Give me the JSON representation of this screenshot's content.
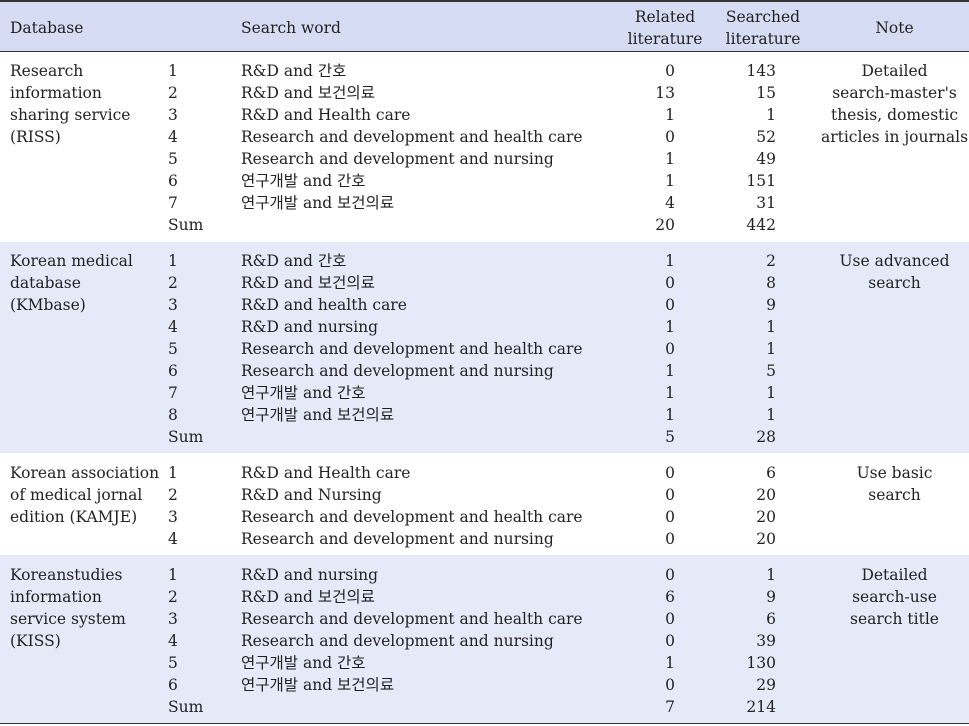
{
  "header": {
    "database": "Database",
    "search_word": "Search word",
    "related_l1": "Related",
    "related_l2": "literature",
    "searched_l1": "Searched",
    "searched_l2": "literature",
    "note": "Note"
  },
  "groups": [
    {
      "db": [
        "Research",
        "information",
        "sharing service",
        "(RISS)"
      ],
      "note": [
        "Detailed",
        "search-master's",
        "thesis, domestic",
        "articles in journals"
      ],
      "rows": [
        {
          "no": "1",
          "word": "R&D and 간호",
          "related": "0",
          "searched": "143"
        },
        {
          "no": "2",
          "word": "R&D and 보건의료",
          "related": "13",
          "searched": "15"
        },
        {
          "no": "3",
          "word": "R&D and Health care",
          "related": "1",
          "searched": "1"
        },
        {
          "no": "4",
          "word": "Research and development and health care",
          "related": "0",
          "searched": "52"
        },
        {
          "no": "5",
          "word": "Research and development and nursing",
          "related": "1",
          "searched": "49"
        },
        {
          "no": "6",
          "word": "연구개발 and 간호",
          "related": "1",
          "searched": "151"
        },
        {
          "no": "7",
          "word": "연구개발 and 보건의료",
          "related": "4",
          "searched": "31"
        },
        {
          "no": "Sum",
          "word": "",
          "related": "20",
          "searched": "442"
        }
      ]
    },
    {
      "db": [
        "Korean medical",
        "database",
        "(KMbase)"
      ],
      "note": [
        "Use advanced",
        "search"
      ],
      "rows": [
        {
          "no": "1",
          "word": "R&D and 간호",
          "related": "1",
          "searched": "2"
        },
        {
          "no": "2",
          "word": "R&D and 보건의료",
          "related": "0",
          "searched": "8"
        },
        {
          "no": "3",
          "word": "R&D and health care",
          "related": "0",
          "searched": "9"
        },
        {
          "no": "4",
          "word": "R&D and nursing",
          "related": "1",
          "searched": "1"
        },
        {
          "no": "5",
          "word": "Research and development and health care",
          "related": "0",
          "searched": "1"
        },
        {
          "no": "6",
          "word": "Research and development and nursing",
          "related": "1",
          "searched": "5"
        },
        {
          "no": "7",
          "word": "연구개발 and 간호",
          "related": "1",
          "searched": "1"
        },
        {
          "no": "8",
          "word": "연구개발 and 보건의료",
          "related": "1",
          "searched": "1"
        },
        {
          "no": "Sum",
          "word": "",
          "related": "5",
          "searched": "28"
        }
      ]
    },
    {
      "db": [
        "Korean association",
        "of medical jornal",
        "edition (KAMJE)"
      ],
      "note": [
        "Use basic",
        "search"
      ],
      "rows": [
        {
          "no": "1",
          "word": "R&D and Health care",
          "related": "0",
          "searched": "6"
        },
        {
          "no": "2",
          "word": "R&D and Nursing",
          "related": "0",
          "searched": "20"
        },
        {
          "no": "3",
          "word": "Research and development and health care",
          "related": "0",
          "searched": "20"
        },
        {
          "no": "4",
          "word": "Research and development and nursing",
          "related": "0",
          "searched": "20"
        }
      ]
    },
    {
      "db": [
        "Koreanstudies",
        "information",
        "service system",
        "(KISS)"
      ],
      "note": [
        "Detailed",
        "search-use",
        "search title"
      ],
      "rows": [
        {
          "no": "1",
          "word": "R&D and nursing",
          "related": "0",
          "searched": "1"
        },
        {
          "no": "2",
          "word": "R&D and 보건의료",
          "related": "6",
          "searched": "9"
        },
        {
          "no": "3",
          "word": "Research and development and health care",
          "related": "0",
          "searched": "6"
        },
        {
          "no": "4",
          "word": "Research and development and nursing",
          "related": "0",
          "searched": "39"
        },
        {
          "no": "5",
          "word": "연구개발 and 간호",
          "related": "1",
          "searched": "130"
        },
        {
          "no": "6",
          "word": "연구개발 and 보건의료",
          "related": "0",
          "searched": "29"
        },
        {
          "no": "Sum",
          "word": "",
          "related": "7",
          "searched": "214"
        }
      ]
    }
  ]
}
